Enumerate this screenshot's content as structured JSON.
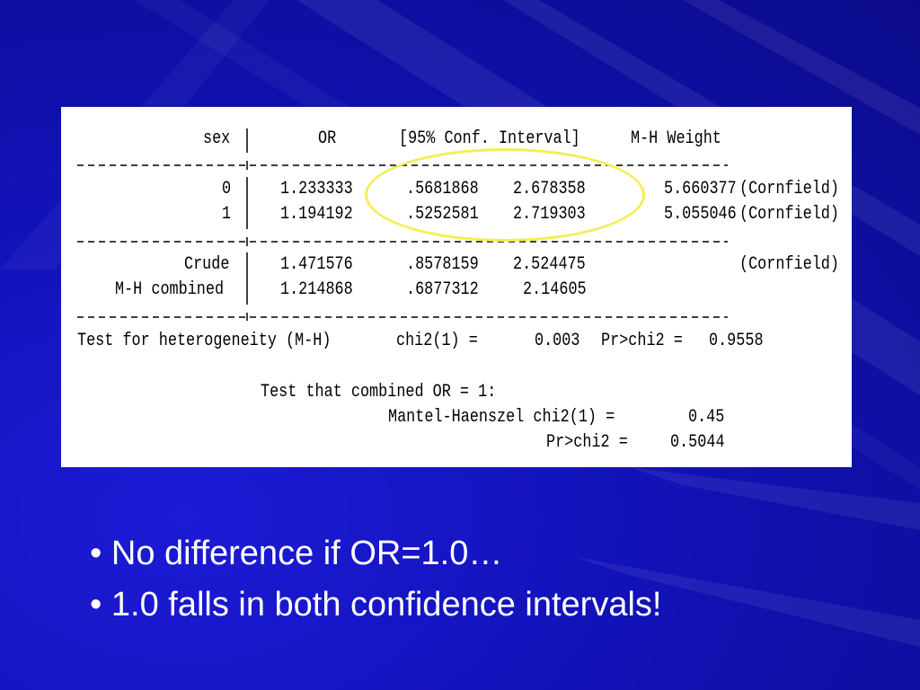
{
  "output_table": {
    "header": {
      "sex": "sex",
      "or": "OR",
      "conf_interval": "[95% Conf. Interval]",
      "mh_weight": "M-H Weight"
    },
    "rows": [
      {
        "label": "0",
        "or": "1.233333",
        "ci_low": ".5681868",
        "ci_high": "2.678358",
        "weight": "5.660377",
        "method": "(Cornfield)"
      },
      {
        "label": "1",
        "or": "1.194192",
        "ci_low": ".5252581",
        "ci_high": "2.719303",
        "weight": "5.055046",
        "method": "(Cornfield)"
      },
      {
        "label": "Crude",
        "or": "1.471576",
        "ci_low": ".8578159",
        "ci_high": "2.524475",
        "weight": "",
        "method": "(Cornfield)"
      },
      {
        "label": "M-H combined",
        "or": "1.214868",
        "ci_low": ".6877312",
        "ci_high": "2.14605",
        "weight": "",
        "method": ""
      }
    ],
    "heterogeneity": {
      "label": "Test for heterogeneity (M-H)",
      "stat_label": "chi2(1) =",
      "stat_value": "0.003",
      "p_label": "Pr>chi2 =",
      "p_value": "0.9558"
    },
    "combined_test": {
      "title": "Test that combined OR = 1:",
      "mh_label": "Mantel-Haenszel chi2(1) =",
      "mh_value": "0.45",
      "p_label": "Pr>chi2 =",
      "p_value": "0.5044"
    }
  },
  "bullets": [
    "No difference if OR=1.0…",
    "1.0 falls in both confidence intervals!"
  ],
  "bullet_glyph": "•",
  "colors": {
    "background": "#1212b8",
    "highlight": "#f5ee55",
    "text": "#ffffff"
  }
}
